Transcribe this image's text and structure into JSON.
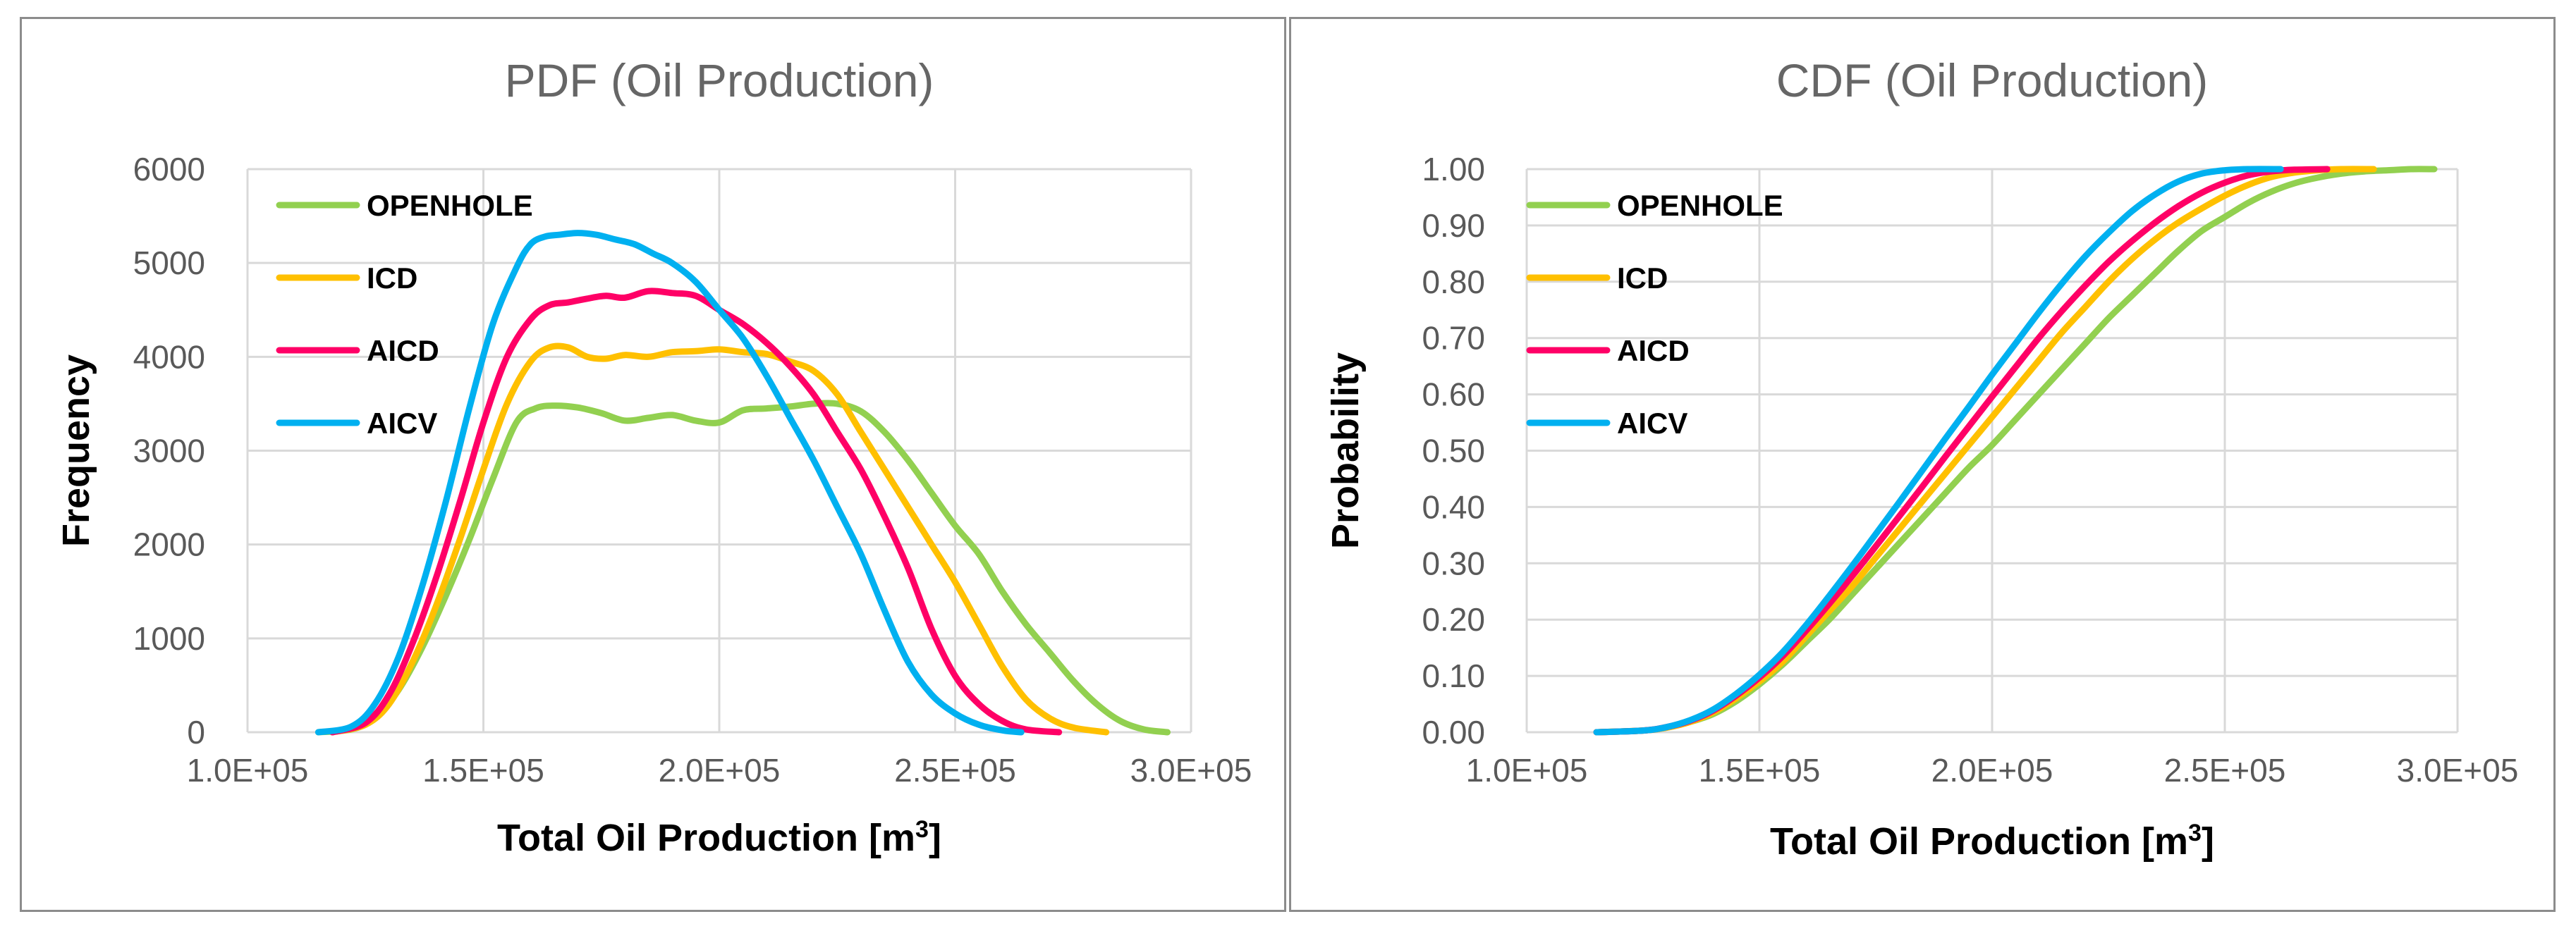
{
  "chart_data": [
    {
      "type": "line",
      "title": "PDF (Oil Production)",
      "xlabel": "Total Oil Production [m",
      "xlabel_sup": "3",
      "xlabel_end": "]",
      "ylabel": "Frequency",
      "xlim": [
        100000,
        300000
      ],
      "ylim": [
        0,
        6000
      ],
      "x_ticks": [
        100000,
        150000,
        200000,
        250000,
        300000
      ],
      "x_tick_labels": [
        "1.0E+05",
        "1.5E+05",
        "2.0E+05",
        "2.5E+05",
        "3.0E+05"
      ],
      "y_ticks": [
        0,
        1000,
        2000,
        3000,
        4000,
        5000,
        6000
      ],
      "y_tick_labels": [
        "0",
        "1000",
        "2000",
        "3000",
        "4000",
        "5000",
        "6000"
      ],
      "grid": true,
      "legend_position": "top-left",
      "series": [
        {
          "name": "OPENHOLE",
          "color": "#92d050",
          "x": [
            115000,
            122000,
            127000,
            132000,
            137000,
            142000,
            147000,
            152000,
            157000,
            161000,
            165000,
            170000,
            175000,
            180000,
            185000,
            190000,
            195000,
            200000,
            205000,
            210000,
            215000,
            220000,
            225000,
            230000,
            235000,
            240000,
            245000,
            250000,
            255000,
            260000,
            265000,
            270000,
            275000,
            280000,
            285000,
            290000,
            295000
          ],
          "values": [
            0,
            30,
            150,
            450,
            900,
            1450,
            2050,
            2700,
            3300,
            3450,
            3480,
            3460,
            3400,
            3320,
            3350,
            3380,
            3320,
            3300,
            3430,
            3450,
            3470,
            3500,
            3500,
            3420,
            3200,
            2900,
            2550,
            2200,
            1900,
            1500,
            1150,
            850,
            550,
            300,
            120,
            30,
            0
          ]
        },
        {
          "name": "ICD",
          "color": "#ffc000",
          "x": [
            118000,
            125000,
            130000,
            135000,
            140000,
            145000,
            150000,
            155000,
            160000,
            164000,
            168000,
            172000,
            176000,
            180000,
            185000,
            190000,
            195000,
            200000,
            205000,
            210000,
            215000,
            220000,
            225000,
            230000,
            235000,
            240000,
            245000,
            250000,
            255000,
            260000,
            265000,
            270000,
            275000,
            282000
          ],
          "values": [
            0,
            80,
            300,
            750,
            1350,
            2050,
            2800,
            3500,
            3950,
            4100,
            4100,
            4000,
            3980,
            4020,
            4000,
            4050,
            4060,
            4080,
            4050,
            4030,
            3950,
            3850,
            3600,
            3200,
            2800,
            2400,
            2000,
            1600,
            1150,
            700,
            350,
            150,
            50,
            0
          ]
        },
        {
          "name": "AICD",
          "color": "#ff0066",
          "x": [
            118000,
            125000,
            130000,
            135000,
            140000,
            145000,
            150000,
            155000,
            160000,
            164000,
            168000,
            172000,
            176000,
            180000,
            185000,
            190000,
            195000,
            200000,
            205000,
            210000,
            215000,
            220000,
            225000,
            230000,
            235000,
            240000,
            245000,
            250000,
            255000,
            260000,
            265000,
            272000
          ],
          "values": [
            0,
            100,
            400,
            950,
            1650,
            2450,
            3300,
            4000,
            4400,
            4550,
            4580,
            4620,
            4650,
            4630,
            4700,
            4680,
            4650,
            4500,
            4350,
            4150,
            3900,
            3600,
            3200,
            2800,
            2300,
            1750,
            1100,
            600,
            300,
            120,
            30,
            0
          ]
        },
        {
          "name": "AICV",
          "color": "#00b0f0",
          "x": [
            115000,
            122000,
            127000,
            132000,
            137000,
            142000,
            147000,
            152000,
            157000,
            160000,
            163000,
            166000,
            170000,
            174000,
            178000,
            182000,
            186000,
            190000,
            195000,
            200000,
            205000,
            210000,
            215000,
            220000,
            225000,
            230000,
            235000,
            240000,
            245000,
            250000,
            255000,
            260000,
            264000
          ],
          "values": [
            0,
            60,
            300,
            800,
            1550,
            2450,
            3450,
            4350,
            4950,
            5200,
            5280,
            5300,
            5320,
            5300,
            5250,
            5200,
            5100,
            5000,
            4800,
            4500,
            4200,
            3800,
            3350,
            2900,
            2400,
            1900,
            1300,
            750,
            400,
            200,
            80,
            20,
            0
          ]
        }
      ]
    },
    {
      "type": "line",
      "title": "CDF (Oil Production)",
      "xlabel": "Total Oil Production [m",
      "xlabel_sup": "3",
      "xlabel_end": "]",
      "ylabel": "Probability",
      "xlim": [
        100000,
        300000
      ],
      "ylim": [
        0,
        1
      ],
      "x_ticks": [
        100000,
        150000,
        200000,
        250000,
        300000
      ],
      "x_tick_labels": [
        "1.0E+05",
        "1.5E+05",
        "2.0E+05",
        "2.5E+05",
        "3.0E+05"
      ],
      "y_ticks": [
        0,
        0.1,
        0.2,
        0.3,
        0.4,
        0.5,
        0.6,
        0.7,
        0.8,
        0.9,
        1.0
      ],
      "y_tick_labels": [
        "0.00",
        "0.10",
        "0.20",
        "0.30",
        "0.40",
        "0.50",
        "0.60",
        "0.70",
        "0.80",
        "0.90",
        "1.00"
      ],
      "grid": true,
      "legend_position": "top-left",
      "series": [
        {
          "name": "OPENHOLE",
          "color": "#92d050",
          "x": [
            115000,
            125000,
            130000,
            135000,
            140000,
            145000,
            150000,
            155000,
            160000,
            165000,
            170000,
            175000,
            180000,
            185000,
            190000,
            195000,
            200000,
            205000,
            210000,
            215000,
            220000,
            225000,
            230000,
            235000,
            240000,
            245000,
            250000,
            255000,
            260000,
            265000,
            270000,
            275000,
            280000,
            285000,
            290000,
            295000
          ],
          "values": [
            0,
            0.003,
            0.008,
            0.018,
            0.032,
            0.055,
            0.085,
            0.12,
            0.16,
            0.2,
            0.245,
            0.29,
            0.335,
            0.38,
            0.425,
            0.47,
            0.51,
            0.555,
            0.6,
            0.645,
            0.69,
            0.735,
            0.775,
            0.815,
            0.855,
            0.89,
            0.915,
            0.94,
            0.96,
            0.975,
            0.985,
            0.992,
            0.996,
            0.998,
            1.0,
            1.0
          ]
        },
        {
          "name": "ICD",
          "color": "#ffc000",
          "x": [
            115000,
            125000,
            130000,
            135000,
            140000,
            145000,
            150000,
            155000,
            160000,
            165000,
            170000,
            175000,
            180000,
            185000,
            190000,
            195000,
            200000,
            205000,
            210000,
            215000,
            220000,
            225000,
            230000,
            235000,
            240000,
            245000,
            250000,
            255000,
            260000,
            265000,
            270000,
            275000,
            282000
          ],
          "values": [
            0,
            0.003,
            0.008,
            0.018,
            0.035,
            0.06,
            0.09,
            0.125,
            0.17,
            0.215,
            0.26,
            0.31,
            0.36,
            0.41,
            0.46,
            0.51,
            0.56,
            0.61,
            0.66,
            0.71,
            0.755,
            0.8,
            0.84,
            0.875,
            0.905,
            0.93,
            0.953,
            0.972,
            0.986,
            0.994,
            0.998,
            1.0,
            1.0
          ]
        },
        {
          "name": "AICD",
          "color": "#ff0066",
          "x": [
            115000,
            125000,
            130000,
            135000,
            140000,
            145000,
            150000,
            155000,
            160000,
            165000,
            170000,
            175000,
            180000,
            185000,
            190000,
            195000,
            200000,
            205000,
            210000,
            215000,
            220000,
            225000,
            230000,
            235000,
            240000,
            245000,
            250000,
            255000,
            260000,
            265000,
            272000
          ],
          "values": [
            0,
            0.003,
            0.009,
            0.02,
            0.038,
            0.065,
            0.097,
            0.135,
            0.18,
            0.228,
            0.278,
            0.33,
            0.383,
            0.436,
            0.49,
            0.543,
            0.596,
            0.648,
            0.7,
            0.748,
            0.793,
            0.835,
            0.872,
            0.905,
            0.934,
            0.958,
            0.976,
            0.989,
            0.996,
            0.999,
            1.0
          ]
        },
        {
          "name": "AICV",
          "color": "#00b0f0",
          "x": [
            115000,
            125000,
            130000,
            135000,
            140000,
            145000,
            150000,
            155000,
            160000,
            165000,
            170000,
            175000,
            180000,
            185000,
            190000,
            195000,
            200000,
            205000,
            210000,
            215000,
            220000,
            225000,
            230000,
            235000,
            240000,
            245000,
            250000,
            255000,
            262000
          ],
          "values": [
            0,
            0.003,
            0.009,
            0.021,
            0.04,
            0.068,
            0.102,
            0.142,
            0.19,
            0.242,
            0.296,
            0.352,
            0.408,
            0.465,
            0.522,
            0.578,
            0.635,
            0.69,
            0.745,
            0.797,
            0.845,
            0.887,
            0.925,
            0.955,
            0.978,
            0.992,
            0.998,
            1.0,
            1.0
          ]
        }
      ]
    }
  ]
}
